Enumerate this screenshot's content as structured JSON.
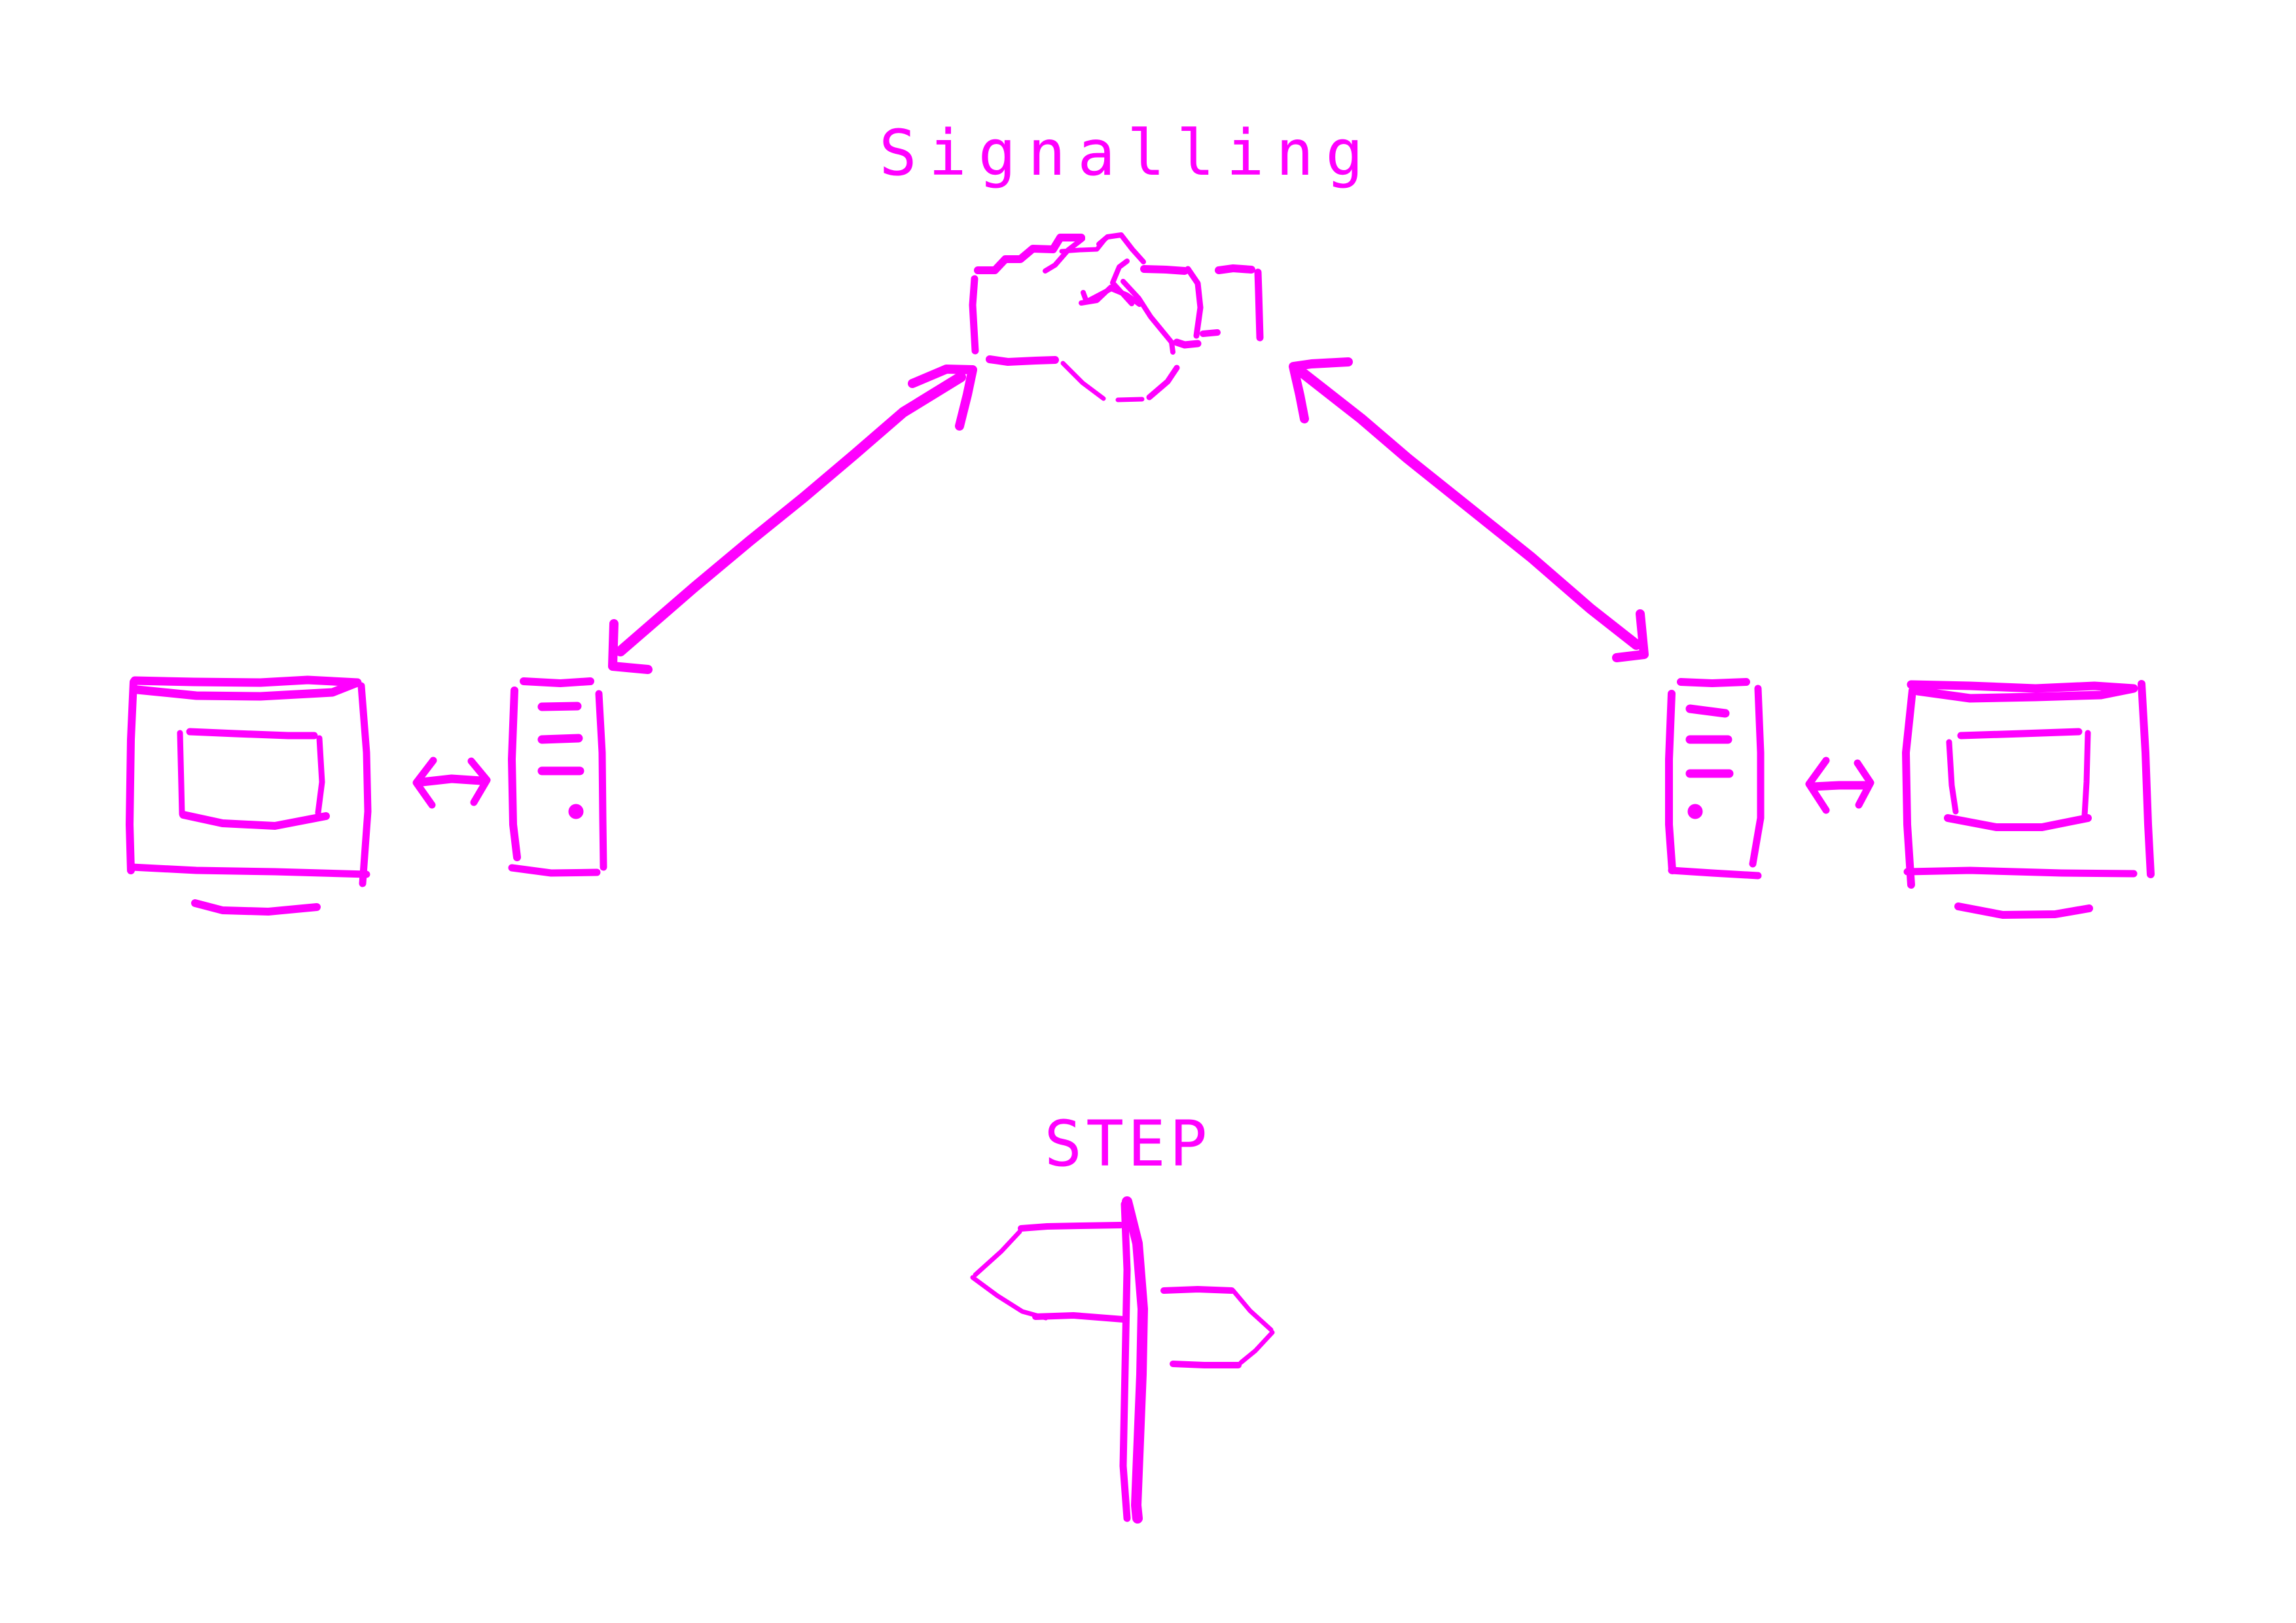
{
  "diagram": {
    "title_signalling": "Signalling",
    "title_step": "STEP",
    "accent_color": "#ff00ff",
    "nodes": [
      {
        "id": "left-monitor",
        "icon": "monitor-icon"
      },
      {
        "id": "left-server",
        "icon": "server-icon"
      },
      {
        "id": "signalling-cloud",
        "icon": "cloud-network-icon"
      },
      {
        "id": "right-server",
        "icon": "server-icon"
      },
      {
        "id": "right-monitor",
        "icon": "monitor-icon"
      },
      {
        "id": "step-signpost",
        "icon": "signpost-icon"
      }
    ],
    "connections": [
      {
        "from": "left-monitor",
        "to": "left-server",
        "type": "bidirectional"
      },
      {
        "from": "left-server",
        "to": "signalling-cloud",
        "type": "bidirectional"
      },
      {
        "from": "signalling-cloud",
        "to": "right-server",
        "type": "bidirectional"
      },
      {
        "from": "right-server",
        "to": "right-monitor",
        "type": "bidirectional"
      }
    ]
  }
}
